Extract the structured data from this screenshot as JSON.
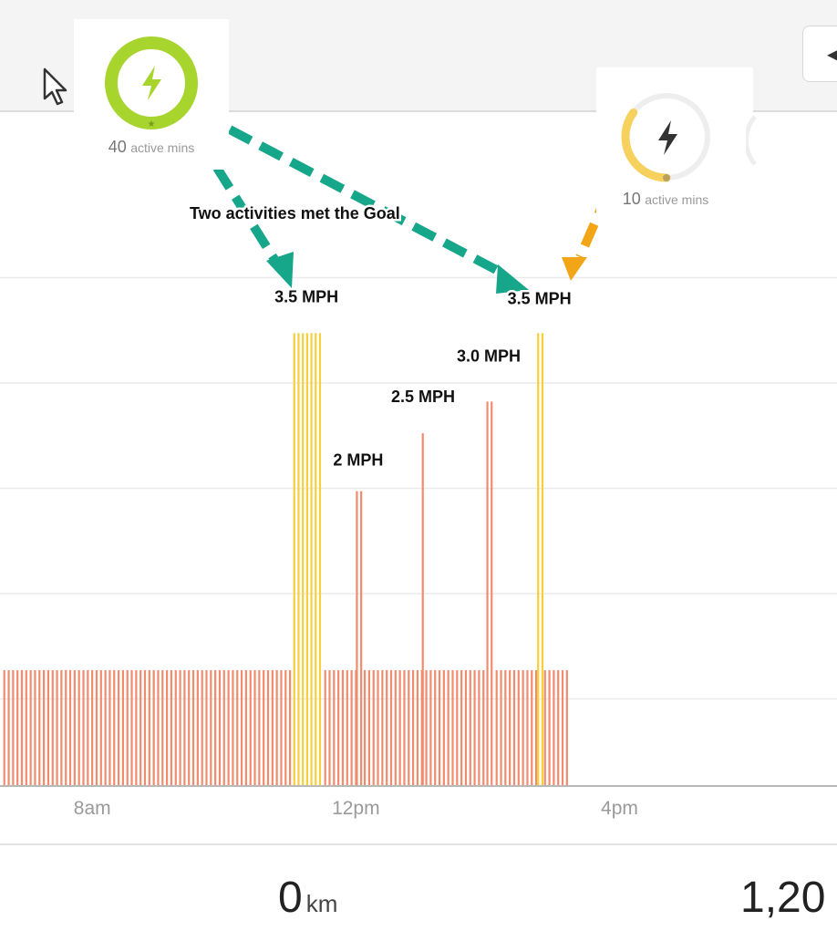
{
  "app": {
    "nav_arrow": "◀",
    "cursor_icon": "pointer-cursor-icon"
  },
  "goal_cards": [
    {
      "value": "40",
      "unit": "active mins",
      "icon": "lightning-icon",
      "progress": 1.0,
      "ring_color": "#a8d42e",
      "met_goal": true
    },
    {
      "value": "10",
      "unit": "active mins",
      "icon": "lightning-icon",
      "progress": 0.35,
      "ring_color": "#f7d15e",
      "met_goal": false
    }
  ],
  "annotations": {
    "goal_text": "Two activities met the Goal",
    "arrow_color_goal": "#16a68a",
    "arrow_color_partial": "#f2a516"
  },
  "chart_data": {
    "type": "bar",
    "title": "",
    "xlabel": "",
    "ylabel": "",
    "x_ticks": [
      {
        "label": "8am",
        "hour": 8
      },
      {
        "label": "12pm",
        "hour": 12
      },
      {
        "label": "4pm",
        "hour": 16
      }
    ],
    "x_range_hours": [
      6.6,
      19.3
    ],
    "ylim": [
      0,
      5
    ],
    "grid": true,
    "baseline_activity": {
      "start_hour": 6.65,
      "end_hour": 15.2,
      "interval_hours": 0.0667,
      "value": 1.1,
      "color": "#f28b6e"
    },
    "activity_series": [
      {
        "start_hour": 11.05,
        "end_hour": 11.45,
        "value": 4.3,
        "color": "#f6cf3a",
        "label": "3.5 MPH"
      },
      {
        "start_hour": 12.0,
        "end_hour": 12.07,
        "value": 2.8,
        "color": "#f28b6e",
        "label": "2 MPH"
      },
      {
        "start_hour": 13.0,
        "end_hour": 13.04,
        "value": 3.35,
        "color": "#f28b6e",
        "label": "2.5 MPH"
      },
      {
        "start_hour": 13.98,
        "end_hour": 14.05,
        "value": 3.65,
        "color": "#f28b6e",
        "label": "3.0 MPH"
      },
      {
        "start_hour": 14.75,
        "end_hour": 14.82,
        "value": 4.3,
        "color": "#f6cf3a",
        "label": "3.5 MPH"
      }
    ]
  },
  "footer": {
    "distance_value": "0",
    "distance_unit": "km",
    "second_value": "1,20"
  }
}
